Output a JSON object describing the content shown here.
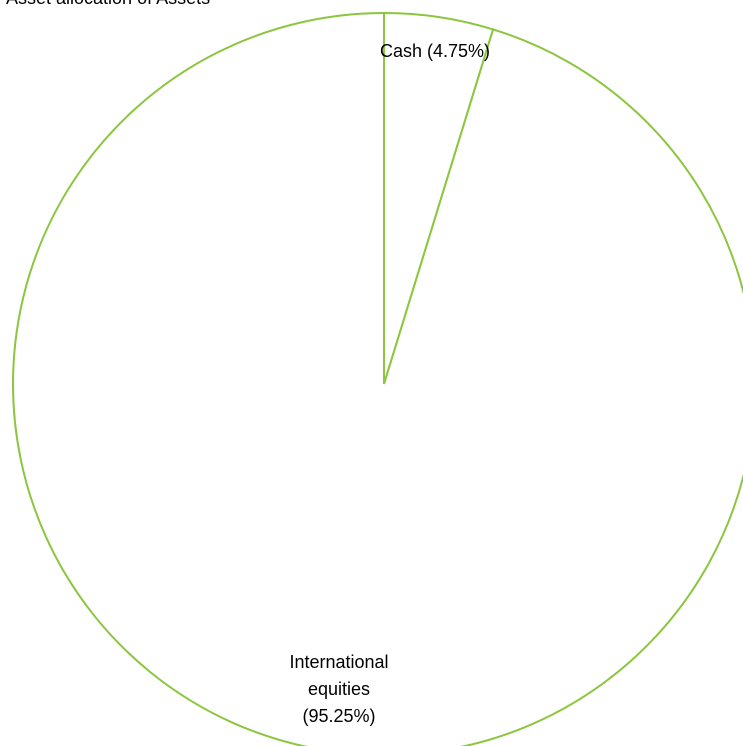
{
  "chart_data": {
    "type": "pie",
    "title": "Asset allocation of Assets",
    "slices": [
      {
        "label": "Cash (4.75%)",
        "label_lines": [
          "Cash (4.75%)"
        ],
        "value": 4.75
      },
      {
        "label": "International equities (95.25%)",
        "label_lines": [
          "International",
          "equities",
          "(95.25%)"
        ],
        "value": 95.25
      }
    ],
    "colors": {
      "slice_fill": "#ffffff",
      "slice_stroke": "#8cc63f",
      "text": "#000000"
    },
    "legend": "none"
  }
}
